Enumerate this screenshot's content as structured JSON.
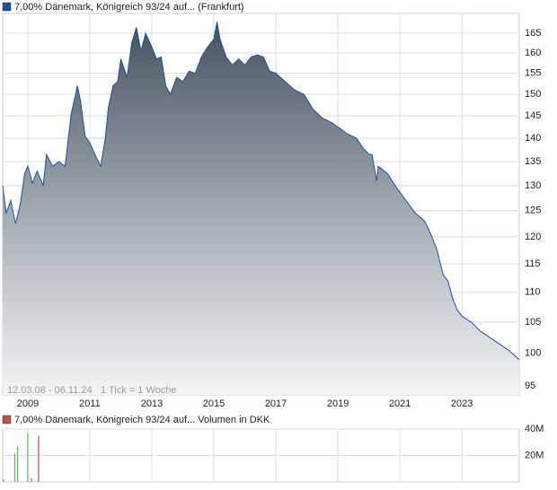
{
  "chart_data": [
    {
      "type": "area",
      "title": "7,00% Dänemark, Königreich 93/24 auf... (Frankfurt)",
      "footer_range": "12.03.08 - 06.11.24",
      "footer_tick": "1 Tick = 1 Woche",
      "color": "#1f4fa0",
      "log_scale": true,
      "grid": true,
      "x": [
        2008.19,
        2008.3,
        2008.45,
        2008.6,
        2008.75,
        2008.9,
        2009.0,
        2009.15,
        2009.3,
        2009.5,
        2009.6,
        2009.8,
        2010.0,
        2010.2,
        2010.4,
        2010.6,
        2010.7,
        2010.85,
        2011.0,
        2011.2,
        2011.35,
        2011.5,
        2011.6,
        2011.75,
        2011.9,
        2012.0,
        2012.2,
        2012.35,
        2012.5,
        2012.65,
        2012.8,
        2013.0,
        2013.15,
        2013.3,
        2013.45,
        2013.6,
        2013.8,
        2014.0,
        2014.2,
        2014.4,
        2014.6,
        2014.8,
        2015.0,
        2015.1,
        2015.2,
        2015.4,
        2015.6,
        2015.8,
        2016.0,
        2016.2,
        2016.4,
        2016.6,
        2016.8,
        2017.0,
        2017.3,
        2017.6,
        2017.9,
        2018.2,
        2018.5,
        2018.8,
        2019.0,
        2019.3,
        2019.6,
        2019.8,
        2020.0,
        2020.1,
        2020.25,
        2020.3,
        2020.6,
        2020.9,
        2021.2,
        2021.5,
        2021.8,
        2022.0,
        2022.2,
        2022.4,
        2022.55,
        2022.7,
        2022.85,
        2023.0,
        2023.3,
        2023.6,
        2023.9,
        2024.2,
        2024.5,
        2024.85
      ],
      "values": [
        130,
        124.5,
        127,
        122.5,
        126,
        132.5,
        134,
        130.5,
        133,
        130,
        136.5,
        134,
        135,
        134,
        145.5,
        152,
        148.5,
        140.5,
        139,
        136,
        134,
        140,
        147,
        152,
        153,
        158.5,
        154,
        162.5,
        166.5,
        160.5,
        165,
        161.5,
        158.5,
        159,
        152,
        150,
        154,
        153,
        155.5,
        155,
        159,
        161.5,
        163.5,
        168,
        163.5,
        159,
        157,
        158.5,
        157,
        159,
        159.5,
        159,
        155.5,
        155,
        153,
        151,
        150,
        146.5,
        144.5,
        143.5,
        142.5,
        141,
        140,
        138,
        136.5,
        136.5,
        131,
        134,
        132.5,
        129.5,
        127,
        124.5,
        123,
        120.5,
        117.5,
        113,
        112,
        109,
        107,
        106,
        105,
        103.5,
        102.5,
        101.5,
        100.5,
        99
      ],
      "xlim": [
        2008.19,
        2024.85
      ],
      "xticks": [
        2009,
        2011,
        2013,
        2015,
        2017,
        2019,
        2021,
        2023
      ],
      "ylim": [
        93.7,
        170.2
      ],
      "yticks": [
        95,
        100,
        105,
        110,
        115,
        120,
        125,
        130,
        135,
        140,
        145,
        150,
        155,
        160,
        165
      ]
    },
    {
      "type": "bar",
      "title": "7,00% Dänemark, Königreich 93/24 auf... Volumen in DKK",
      "legend_color": "#c0504d",
      "grid": true,
      "x": [
        2008.22,
        2008.58,
        2008.67,
        2009.0,
        2009.12,
        2009.35
      ],
      "values": [
        2000000,
        21300000,
        26700000,
        36700000,
        3000000,
        34700000
      ],
      "colors": [
        "#5cb85c",
        "#5cb85c",
        "#5cb85c",
        "#5cb85c",
        "#c0504d",
        "#c0504d"
      ],
      "xlim": [
        2008.19,
        2024.85
      ],
      "xticks": [
        2009,
        2011,
        2013,
        2015,
        2017,
        2019,
        2021,
        2023
      ],
      "ylim": [
        0,
        40000000
      ],
      "yticks": [
        {
          "value": 20000000,
          "label": "20M"
        },
        {
          "value": 40000000,
          "label": "40M"
        }
      ]
    }
  ]
}
